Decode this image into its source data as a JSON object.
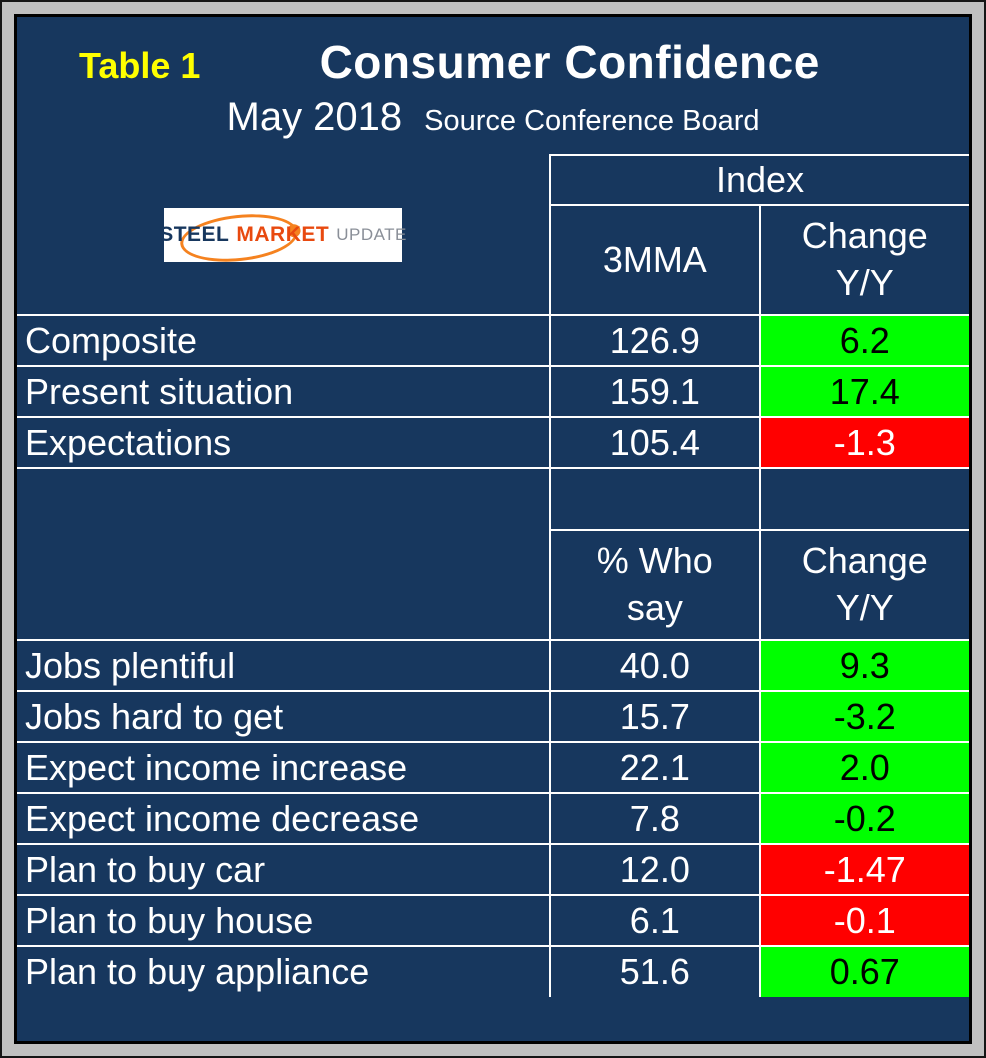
{
  "header": {
    "table_label": "Table 1",
    "title": "Consumer Confidence",
    "month": "May 2018",
    "source": "Source Conference Board"
  },
  "logo": {
    "word1": "STEEL",
    "word2": "MARKET",
    "word3": "UPDATE"
  },
  "colors": {
    "background": "#17375E",
    "frame": "#C0C0C0",
    "accent_yellow": "#FFFF00",
    "positive_bg": "#00FF00",
    "positive_text": "#000000",
    "negative_bg": "#FF0000",
    "negative_text": "#FFFFFF"
  },
  "table": {
    "group_header": "Index",
    "sections": [
      {
        "value_header": "3MMA",
        "change_header": "Change Y/Y",
        "rows": [
          {
            "label": "Composite",
            "value": "126.9",
            "change": "6.2",
            "status": "positive"
          },
          {
            "label": "Present situation",
            "value": "159.1",
            "change": "17.4",
            "status": "positive"
          },
          {
            "label": "Expectations",
            "value": "105.4",
            "change": "-1.3",
            "status": "negative"
          }
        ]
      },
      {
        "value_header": "% Who say",
        "change_header": "Change Y/Y",
        "rows": [
          {
            "label": "Jobs plentiful",
            "value": "40.0",
            "change": "9.3",
            "status": "positive"
          },
          {
            "label": "Jobs hard to get",
            "value": "15.7",
            "change": "-3.2",
            "status": "positive"
          },
          {
            "label": "Expect income increase",
            "value": "22.1",
            "change": "2.0",
            "status": "positive"
          },
          {
            "label": "Expect income decrease",
            "value": "7.8",
            "change": "-0.2",
            "status": "positive"
          },
          {
            "label": "Plan to buy car",
            "value": "12.0",
            "change": "-1.47",
            "status": "negative"
          },
          {
            "label": "Plan to buy house",
            "value": "6.1",
            "change": "-0.1",
            "status": "negative"
          },
          {
            "label": "Plan to buy appliance",
            "value": "51.6",
            "change": "0.67",
            "status": "positive"
          }
        ]
      }
    ]
  },
  "chart_data": {
    "type": "table",
    "title": "Consumer Confidence",
    "subtitle": "May 2018",
    "source": "Source Conference Board",
    "sections": [
      {
        "group": "Index",
        "columns": [
          "",
          "3MMA",
          "Change Y/Y"
        ],
        "rows": [
          [
            "Composite",
            126.9,
            6.2
          ],
          [
            "Present situation",
            159.1,
            17.4
          ],
          [
            "Expectations",
            105.4,
            -1.3
          ]
        ]
      },
      {
        "group": "",
        "columns": [
          "",
          "% Who say",
          "Change Y/Y"
        ],
        "rows": [
          [
            "Jobs plentiful",
            40.0,
            9.3
          ],
          [
            "Jobs hard to get",
            15.7,
            -3.2
          ],
          [
            "Expect income increase",
            22.1,
            2.0
          ],
          [
            "Expect income decrease",
            7.8,
            -0.2
          ],
          [
            "Plan to buy car",
            12.0,
            -1.47
          ],
          [
            "Plan to buy house",
            6.1,
            -0.1
          ],
          [
            "Plan to buy appliance",
            51.6,
            0.67
          ]
        ]
      }
    ]
  }
}
